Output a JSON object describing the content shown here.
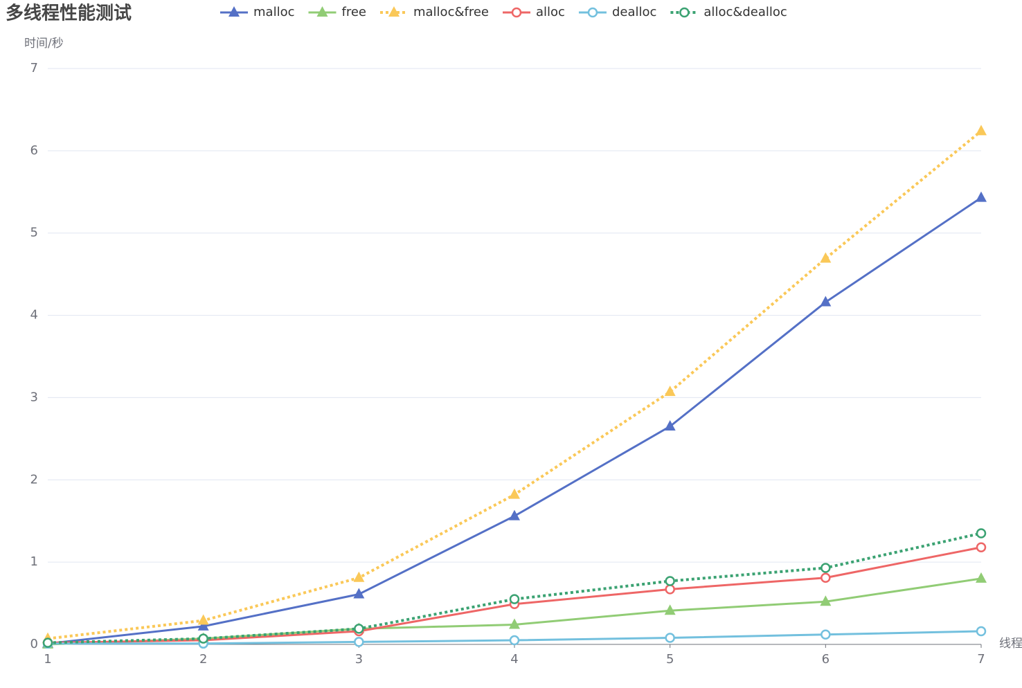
{
  "chart_data": {
    "type": "line",
    "title": "多线程性能测试",
    "ylabel": "时间/秒",
    "xlabel": "线程",
    "x": [
      1,
      2,
      3,
      4,
      5,
      6,
      7
    ],
    "xlim": [
      1,
      7
    ],
    "xticks": [
      1,
      2,
      3,
      4,
      5,
      6,
      7
    ],
    "ylim": [
      0,
      7
    ],
    "yticks": [
      0,
      1,
      2,
      3,
      4,
      5,
      6,
      7
    ],
    "grid": true,
    "series": [
      {
        "name": "malloc",
        "color": "#5470c6",
        "symbol": "triangle",
        "dashed": false,
        "values": [
          0.01,
          0.22,
          0.61,
          1.56,
          2.65,
          4.16,
          5.43
        ]
      },
      {
        "name": "free",
        "color": "#91cc75",
        "symbol": "triangle",
        "dashed": false,
        "values": [
          0.0,
          0.07,
          0.19,
          0.24,
          0.41,
          0.52,
          0.8
        ]
      },
      {
        "name": "malloc&free",
        "color": "#fac858",
        "symbol": "triangle",
        "dashed": true,
        "values": [
          0.07,
          0.29,
          0.81,
          1.82,
          3.07,
          4.69,
          6.24
        ]
      },
      {
        "name": "alloc",
        "color": "#ee6666",
        "symbol": "circle",
        "dashed": false,
        "values": [
          0.02,
          0.05,
          0.16,
          0.49,
          0.67,
          0.81,
          1.18
        ]
      },
      {
        "name": "dealloc",
        "color": "#73c0de",
        "symbol": "circle",
        "dashed": false,
        "values": [
          0.01,
          0.01,
          0.03,
          0.05,
          0.08,
          0.12,
          0.16
        ]
      },
      {
        "name": "alloc&dealloc",
        "color": "#3ba272",
        "symbol": "circle",
        "dashed": true,
        "values": [
          0.02,
          0.07,
          0.19,
          0.55,
          0.77,
          0.93,
          1.35
        ]
      }
    ]
  }
}
